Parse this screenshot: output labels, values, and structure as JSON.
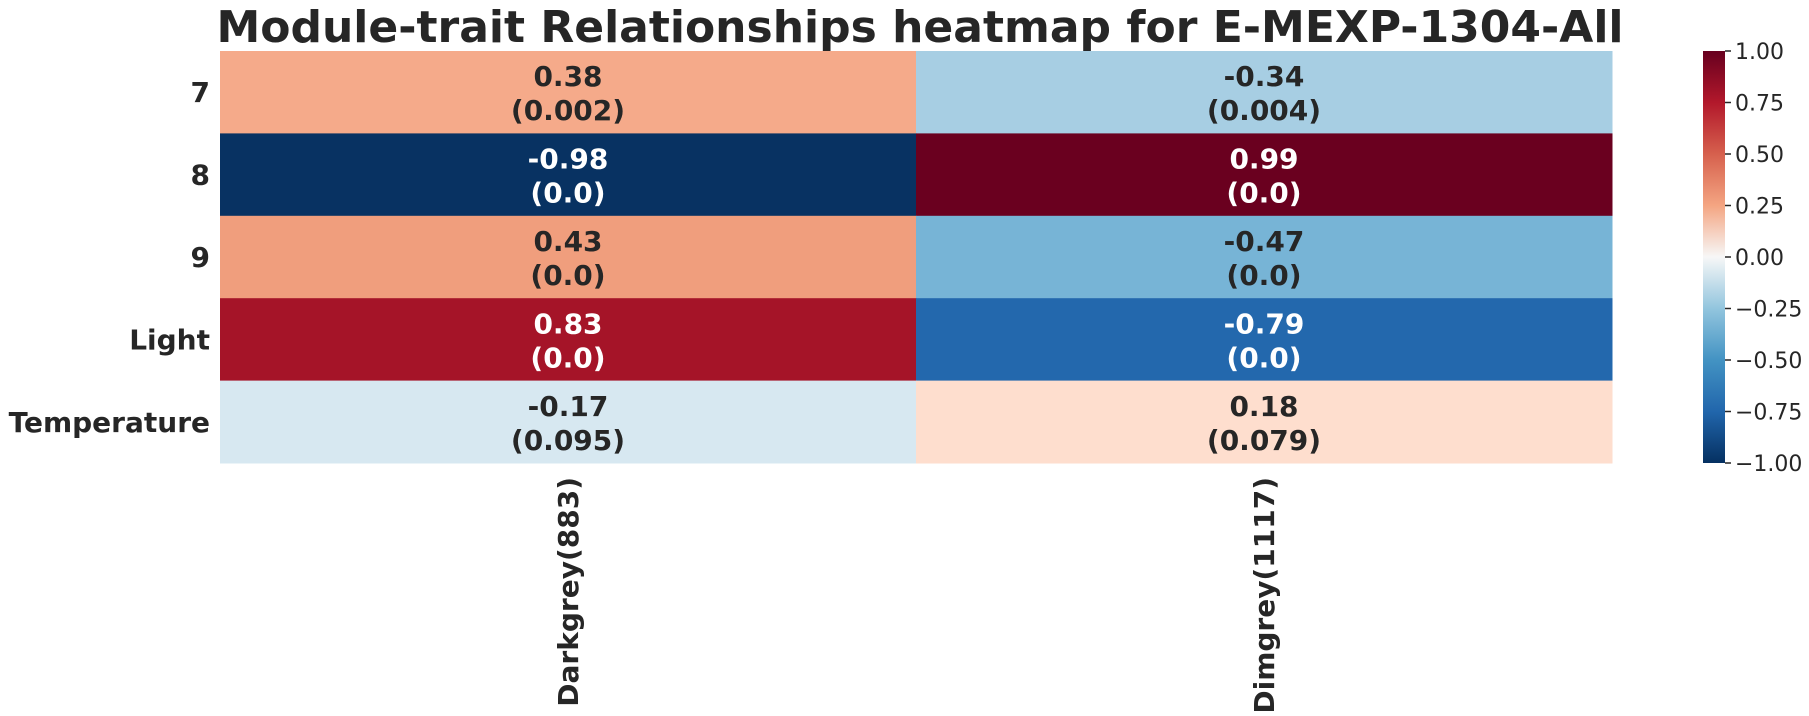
{
  "chart_data": {
    "type": "heatmap",
    "title": "Module-trait Relationships heatmap for E-MEXP-1304-All",
    "rows": [
      "7",
      "8",
      "9",
      "Light",
      "Temperature"
    ],
    "columns": [
      "Darkgrey(883)",
      "Dimgrey(1117)"
    ],
    "values": [
      [
        0.38,
        -0.34
      ],
      [
        -0.98,
        0.99
      ],
      [
        0.43,
        -0.47
      ],
      [
        0.83,
        -0.79
      ],
      [
        -0.17,
        0.18
      ]
    ],
    "annotations": [
      [
        [
          "0.38",
          "(0.002)"
        ],
        [
          "-0.34",
          "(0.004)"
        ]
      ],
      [
        [
          "-0.98",
          "(0.0)"
        ],
        [
          "0.99",
          "(0.0)"
        ]
      ],
      [
        [
          "0.43",
          "(0.0)"
        ],
        [
          "-0.47",
          "(0.0)"
        ]
      ],
      [
        [
          "0.83",
          "(0.0)"
        ],
        [
          "-0.79",
          "(0.0)"
        ]
      ],
      [
        [
          "-0.17",
          "(0.095)"
        ],
        [
          "0.18",
          "(0.079)"
        ]
      ]
    ],
    "colorbar": {
      "min": -1.0,
      "max": 1.0,
      "ticks": [
        "1.00",
        "0.75",
        "0.50",
        "0.25",
        "0.00",
        "−0.25",
        "−0.50",
        "−0.75",
        "−1.00"
      ],
      "colormap": "RdBu_r"
    },
    "cell_colors": [
      [
        "#f5aa8a",
        "#a7cee3"
      ],
      [
        "#083262",
        "#6a001f"
      ],
      [
        "#f09e7d",
        "#77b4d6"
      ],
      [
        "#a51428",
        "#2368ad"
      ],
      [
        "#d7e8f1",
        "#fedece"
      ]
    ]
  }
}
